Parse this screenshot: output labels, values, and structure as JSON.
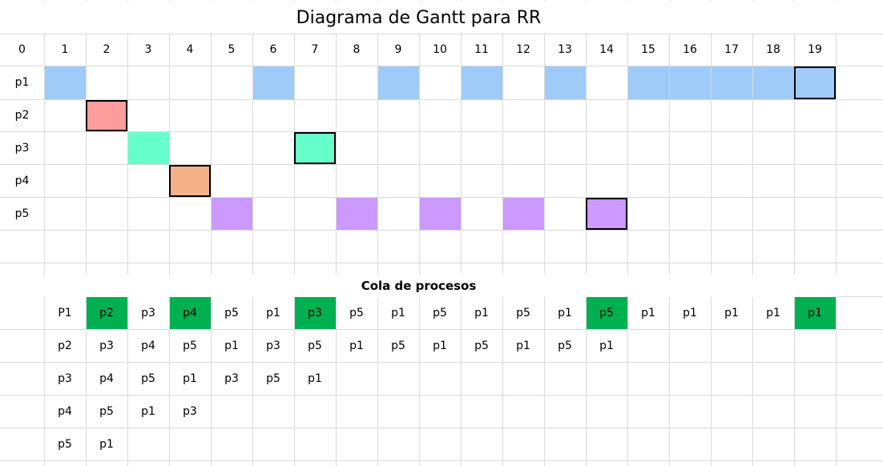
{
  "title": "Diagrama de Gantt para RR",
  "time_labels": [
    "0",
    "1",
    "2",
    "3",
    "4",
    "5",
    "6",
    "7",
    "8",
    "9",
    "10",
    "11",
    "12",
    "13",
    "14",
    "15",
    "16",
    "17",
    "18",
    "19"
  ],
  "processes": [
    {
      "label": "p1",
      "color": "#9fcbf9",
      "slots": [
        1,
        6,
        9,
        11,
        13,
        15,
        16,
        17,
        18,
        19
      ],
      "final": 19
    },
    {
      "label": "p2",
      "color": "#fe9d9c",
      "slots": [
        2
      ],
      "final": 2
    },
    {
      "label": "p3",
      "color": "#66ffcc",
      "slots": [
        3,
        7
      ],
      "final": 7
    },
    {
      "label": "p4",
      "color": "#f4b086",
      "slots": [
        4
      ],
      "final": 4
    },
    {
      "label": "p5",
      "color": "#cc99ff",
      "slots": [
        5,
        8,
        10,
        12,
        14
      ],
      "final": 14
    }
  ],
  "queue": {
    "title": "Cola de procesos",
    "highlight_color": "#00b050",
    "highlight_columns": [
      2,
      4,
      7,
      14,
      19
    ],
    "rows": [
      [
        "P1",
        "p2",
        "p3",
        "p4",
        "p5",
        "p1",
        "p3",
        "p5",
        "p1",
        "p5",
        "p1",
        "p5",
        "p1",
        "p5",
        "p1",
        "p1",
        "p1",
        "p1",
        "p1"
      ],
      [
        "p2",
        "p3",
        "p4",
        "p5",
        "p1",
        "p3",
        "p5",
        "p1",
        "p5",
        "p1",
        "p5",
        "p1",
        "p5",
        "p1"
      ],
      [
        "p3",
        "p4",
        "p5",
        "p1",
        "p3",
        "p5",
        "p1"
      ],
      [
        "p4",
        "p5",
        "p1",
        "p3"
      ],
      [
        "p5",
        "p1"
      ]
    ]
  }
}
